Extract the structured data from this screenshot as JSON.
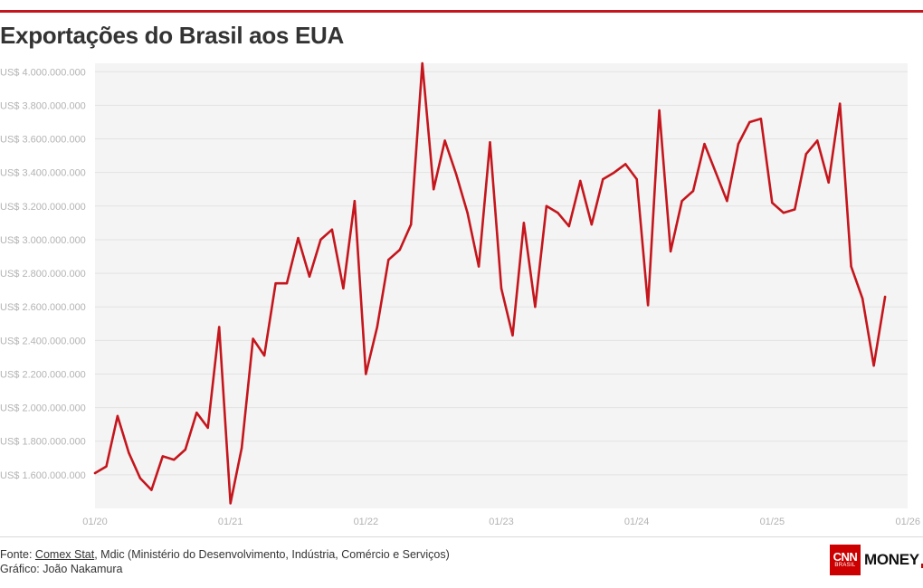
{
  "header": {
    "title": "Exportações do Brasil aos EUA"
  },
  "chart_data": {
    "type": "line",
    "title": "Exportações do Brasil aos EUA",
    "xlabel": "",
    "ylabel": "",
    "ylim": [
      1400000000,
      4050000000
    ],
    "grid": true,
    "y_ticks": [
      1600000000,
      1800000000,
      2000000000,
      2200000000,
      2400000000,
      2600000000,
      2800000000,
      3000000000,
      3200000000,
      3400000000,
      3600000000,
      3800000000,
      4000000000
    ],
    "y_tick_labels": [
      "US$ 1.600.000.000",
      "US$ 1.800.000.000",
      "US$ 2.000.000.000",
      "US$ 2.200.000.000",
      "US$ 2.400.000.000",
      "US$ 2.600.000.000",
      "US$ 2.800.000.000",
      "US$ 3.000.000.000",
      "US$ 3.200.000.000",
      "US$ 3.400.000.000",
      "US$ 3.600.000.000",
      "US$ 3.800.000.000",
      "US$ 4.000.000.000"
    ],
    "x_tick_index": [
      0,
      12,
      24,
      36,
      48,
      60,
      72
    ],
    "x_tick_labels": [
      "01/20",
      "01/21",
      "01/22",
      "01/23",
      "01/24",
      "01/25",
      "01/26"
    ],
    "x_range": [
      0,
      72
    ],
    "line_color": "#c4161c",
    "series": [
      {
        "name": "Exportações do Brasil aos EUA",
        "values": [
          1610000000,
          1650000000,
          1950000000,
          1730000000,
          1580000000,
          1510000000,
          1710000000,
          1690000000,
          1750000000,
          1970000000,
          1880000000,
          2480000000,
          1430000000,
          1760000000,
          2410000000,
          2310000000,
          2740000000,
          2740000000,
          3010000000,
          2780000000,
          3000000000,
          3060000000,
          2710000000,
          3230000000,
          2200000000,
          2480000000,
          2880000000,
          2940000000,
          3090000000,
          4050000000,
          3300000000,
          3590000000,
          3390000000,
          3160000000,
          2840000000,
          3580000000,
          2710000000,
          2430000000,
          3100000000,
          2600000000,
          3200000000,
          3160000000,
          3080000000,
          3350000000,
          3090000000,
          3360000000,
          3400000000,
          3450000000,
          3360000000,
          2610000000,
          3770000000,
          2930000000,
          3230000000,
          3290000000,
          3570000000,
          3400000000,
          3230000000,
          3570000000,
          3700000000,
          3720000000,
          3220000000,
          3160000000,
          3180000000,
          3510000000,
          3590000000,
          3340000000,
          3810000000,
          2840000000,
          2650000000,
          2250000000,
          2660000000
        ]
      }
    ]
  },
  "footer": {
    "source_prefix": "Fonte: ",
    "source_link": "Comex Stat",
    "source_rest": ", Mdic (Ministério do Desenvolvimento, Indústria, Comércio e Serviços)",
    "credit": "Gráfico: João Nakamura"
  },
  "logo": {
    "cnn": "CNN",
    "brasil": "BRASIL",
    "money": "MONEY"
  }
}
